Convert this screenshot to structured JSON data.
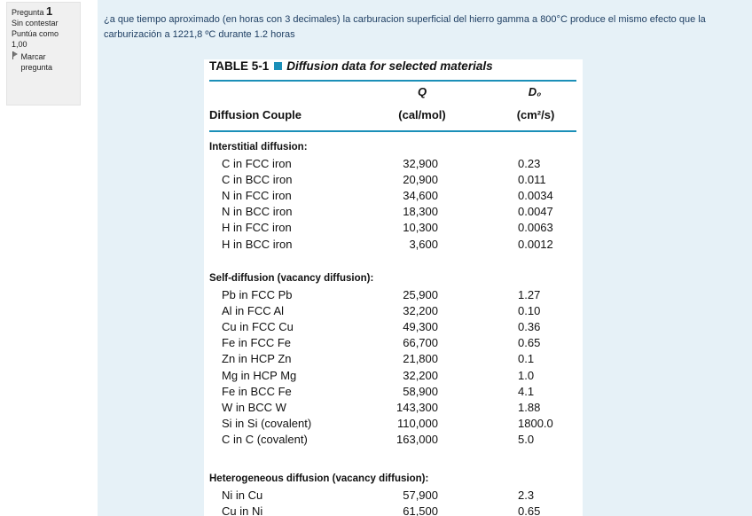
{
  "question_info": {
    "label": "Pregunta",
    "number": "1",
    "status": "Sin contestar",
    "score": "Puntúa como 1,00",
    "flag_label": "Marcar pregunta"
  },
  "question": {
    "text": "¿a que tiempo aproximado (en horas con 3 decimales) la carburacion superficial del hierro gamma a 800°C produce el mismo efecto que la carburización a 1221,8 ºC durante 1.2 horas"
  },
  "table": {
    "title_prefix": "TABLE 5-1",
    "title": "Diffusion data for selected materials",
    "headers": {
      "couple": "Diffusion Couple",
      "q_symbol": "Q",
      "q_unit": "(cal/mol)",
      "d_symbol": "D₀",
      "d_unit": "(cm²/s)"
    },
    "sections": [
      {
        "title": "Interstitial diffusion:",
        "rows": [
          {
            "name": "C in FCC iron",
            "q": "32,900",
            "d": "0.23"
          },
          {
            "name": "C in BCC iron",
            "q": "20,900",
            "d": "0.011"
          },
          {
            "name": "N in FCC iron",
            "q": "34,600",
            "d": "0.0034"
          },
          {
            "name": "N in BCC iron",
            "q": "18,300",
            "d": "0.0047"
          },
          {
            "name": "H in FCC iron",
            "q": "10,300",
            "d": "0.0063"
          },
          {
            "name": "H in BCC iron",
            "q": "3,600",
            "d": "0.0012"
          }
        ]
      },
      {
        "title": "Self-diffusion (vacancy diffusion):",
        "rows": [
          {
            "name": "Pb in FCC Pb",
            "q": "25,900",
            "d": "1.27"
          },
          {
            "name": "Al in FCC Al",
            "q": "32,200",
            "d": "0.10"
          },
          {
            "name": "Cu in FCC Cu",
            "q": "49,300",
            "d": "0.36"
          },
          {
            "name": "Fe in FCC Fe",
            "q": "66,700",
            "d": "0.65"
          },
          {
            "name": "Zn in HCP Zn",
            "q": "21,800",
            "d": "0.1"
          },
          {
            "name": "Mg in HCP Mg",
            "q": "32,200",
            "d": "1.0"
          },
          {
            "name": "Fe in BCC Fe",
            "q": "58,900",
            "d": "4.1"
          },
          {
            "name": "W in BCC W",
            "q": "143,300",
            "d": "1.88"
          },
          {
            "name": "Si in Si (covalent)",
            "q": "110,000",
            "d": "1800.0"
          },
          {
            "name": "C in C (covalent)",
            "q": "163,000",
            "d": "5.0"
          }
        ]
      },
      {
        "title": "Heterogeneous diffusion (vacancy diffusion):",
        "rows": [
          {
            "name": "Ni in Cu",
            "q": "57,900",
            "d": "2.3"
          },
          {
            "name": "Cu in Ni",
            "q": "61,500",
            "d": "0.65"
          }
        ]
      }
    ]
  },
  "colors": {
    "accent": "#1b8fb8",
    "content_background": "#e6f1f7",
    "question_text": "#1f3f63"
  }
}
